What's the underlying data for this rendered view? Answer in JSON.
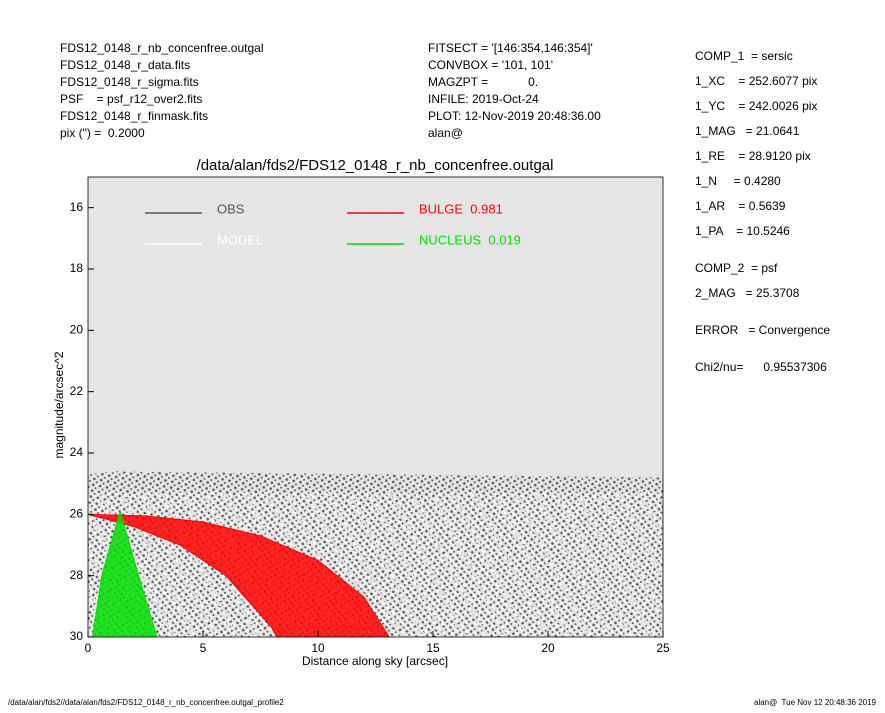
{
  "header": {
    "left": [
      "FDS12_0148_r_nb_concenfree.outgal",
      "FDS12_0148_r_data.fits",
      "FDS12_0148_r_sigma.fits",
      "PSF    = psf_r12_over2.fits",
      "FDS12_0148_r_finmask.fits",
      "pix (\") =  0.2000"
    ],
    "middle": [
      "FITSECT = '[146:354,146:354]'",
      "CONVBOX = '101, 101'",
      "MAGZPT =            0.",
      "INFILE: 2019-Oct-24",
      "PLOT: 12-Nov-2019 20:48:36.00",
      "alan@"
    ],
    "right": [
      [
        "COMP_1  = sersic",
        "1_XC    = 252.6077 pix",
        "1_YC    = 242.0026 pix",
        "1_MAG   = 21.0641",
        "1_RE    = 28.9120 pix",
        "1_N     = 0.4280",
        "1_AR    = 0.5639",
        "1_PA    = 10.5246"
      ],
      [
        "COMP_2  = psf",
        "2_MAG   = 25.3708"
      ],
      [
        "ERROR   = Convergence"
      ],
      [
        "Chi2/nu=      0.95537306"
      ]
    ]
  },
  "footer": {
    "left": "/data/alan/fds2//data/alan/fds2/FDS12_0148_r_nb_concenfree.outgal_profile2",
    "right": "alan@  Tue Nov 12 20:48:36 2019"
  },
  "chart_data": {
    "type": "band",
    "title": "/data/alan/fds2/FDS12_0148_r_nb_concenfree.outgal",
    "x_label": "Distance along sky [arcsec]",
    "y_label": "magnitude/arcsec^2",
    "xlim": [
      0,
      25
    ],
    "xticks": [
      0,
      5,
      10,
      15,
      20,
      25
    ],
    "ylim": [
      30,
      15
    ],
    "yticks": [
      16,
      18,
      20,
      22,
      24,
      26,
      28,
      30
    ],
    "series": [
      {
        "name": "OBS",
        "color": "#555555",
        "x": [
          0,
          1,
          25
        ],
        "values": [
          24.7,
          24.6,
          24.8
        ],
        "x2": [
          0,
          25
        ],
        "values2": [
          30,
          30
        ]
      },
      {
        "name": "MODEL",
        "color": "#ffffff",
        "x": [
          0,
          25
        ],
        "values": [
          25.3,
          25.3
        ],
        "x2": [
          0,
          25
        ],
        "values2": [
          30,
          30
        ]
      },
      {
        "name": "BULGE  0.981",
        "color": "#ff0000",
        "x": [
          0,
          2.5,
          5,
          7.5,
          10,
          12,
          13.1
        ],
        "values": [
          26.0,
          26.05,
          26.25,
          26.7,
          27.5,
          28.7,
          30
        ],
        "x2": [
          0,
          2,
          4,
          6,
          8,
          8.2
        ],
        "values2": [
          26.0,
          26.4,
          27.0,
          28.0,
          29.7,
          30
        ]
      },
      {
        "name": "NUCLEUS  0.019",
        "color": "#00dd00",
        "x": [
          0.2,
          0.6,
          1.4,
          2.2,
          3.0
        ],
        "values": [
          30,
          28,
          25.9,
          28,
          30
        ]
      }
    ]
  }
}
